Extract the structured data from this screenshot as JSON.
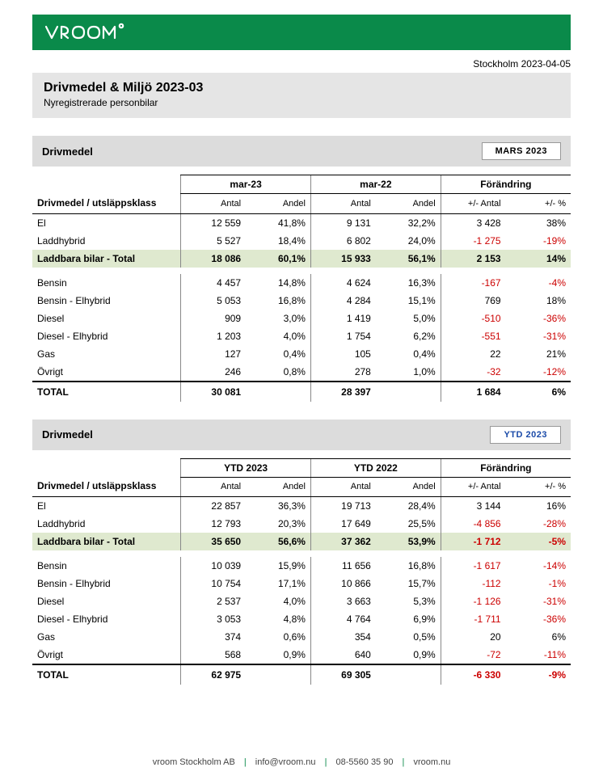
{
  "meta": {
    "location_date": "Stockholm 2023-04-05",
    "title": "Drivmedel & Miljö 2023-03",
    "subtitle": "Nyregistrerade personbilar"
  },
  "colors": {
    "brand_green": "#0a8a4a",
    "section_grey": "#dcdcdc",
    "title_grey": "#e5e5e5",
    "highlight_row": "#dfe9cf",
    "negative": "#cc0000",
    "ytd_blue": "#1a4aa8"
  },
  "section1": {
    "heading": "Drivmedel",
    "period_badge": "MARS 2023",
    "row_header": "Drivmedel / utsläppsklass",
    "group_headers": [
      "mar-23",
      "mar-22",
      "Förändring"
    ],
    "sub_headers": [
      "Antal",
      "Andel",
      "Antal",
      "Andel",
      "+/- Antal",
      "+/- %"
    ],
    "rows": [
      {
        "label": "El",
        "a1": "12 559",
        "s1": "41,8%",
        "a2": "9 131",
        "s2": "32,2%",
        "d": "3 428",
        "p": "38%",
        "neg": false
      },
      {
        "label": "Laddhybrid",
        "a1": "5 527",
        "s1": "18,4%",
        "a2": "6 802",
        "s2": "24,0%",
        "d": "-1 275",
        "p": "-19%",
        "neg": true
      }
    ],
    "subtotal": {
      "label": "Laddbara bilar - Total",
      "a1": "18 086",
      "s1": "60,1%",
      "a2": "15 933",
      "s2": "56,1%",
      "d": "2 153",
      "p": "14%",
      "neg": false
    },
    "rows2": [
      {
        "label": "Bensin",
        "a1": "4 457",
        "s1": "14,8%",
        "a2": "4 624",
        "s2": "16,3%",
        "d": "-167",
        "p": "-4%",
        "neg": true
      },
      {
        "label": "Bensin - Elhybrid",
        "a1": "5 053",
        "s1": "16,8%",
        "a2": "4 284",
        "s2": "15,1%",
        "d": "769",
        "p": "18%",
        "neg": false
      },
      {
        "label": "Diesel",
        "a1": "909",
        "s1": "3,0%",
        "a2": "1 419",
        "s2": "5,0%",
        "d": "-510",
        "p": "-36%",
        "neg": true
      },
      {
        "label": "Diesel - Elhybrid",
        "a1": "1 203",
        "s1": "4,0%",
        "a2": "1 754",
        "s2": "6,2%",
        "d": "-551",
        "p": "-31%",
        "neg": true
      },
      {
        "label": "Gas",
        "a1": "127",
        "s1": "0,4%",
        "a2": "105",
        "s2": "0,4%",
        "d": "22",
        "p": "21%",
        "neg": false
      },
      {
        "label": "Övrigt",
        "a1": "246",
        "s1": "0,8%",
        "a2": "278",
        "s2": "1,0%",
        "d": "-32",
        "p": "-12%",
        "neg": true
      }
    ],
    "total": {
      "label": "TOTAL",
      "a1": "30 081",
      "s1": "",
      "a2": "28 397",
      "s2": "",
      "d": "1 684",
      "p": "6%",
      "neg": false
    }
  },
  "section2": {
    "heading": "Drivmedel",
    "period_badge": "YTD 2023",
    "row_header": "Drivmedel / utsläppsklass",
    "group_headers": [
      "YTD 2023",
      "YTD 2022",
      "Förändring"
    ],
    "sub_headers": [
      "Antal",
      "Andel",
      "Antal",
      "Andel",
      "+/- Antal",
      "+/- %"
    ],
    "rows": [
      {
        "label": "El",
        "a1": "22 857",
        "s1": "36,3%",
        "a2": "19 713",
        "s2": "28,4%",
        "d": "3 144",
        "p": "16%",
        "neg": false
      },
      {
        "label": "Laddhybrid",
        "a1": "12 793",
        "s1": "20,3%",
        "a2": "17 649",
        "s2": "25,5%",
        "d": "-4 856",
        "p": "-28%",
        "neg": true
      }
    ],
    "subtotal": {
      "label": "Laddbara bilar - Total",
      "a1": "35 650",
      "s1": "56,6%",
      "a2": "37 362",
      "s2": "53,9%",
      "d": "-1 712",
      "p": "-5%",
      "neg": true
    },
    "rows2": [
      {
        "label": "Bensin",
        "a1": "10 039",
        "s1": "15,9%",
        "a2": "11 656",
        "s2": "16,8%",
        "d": "-1 617",
        "p": "-14%",
        "neg": true
      },
      {
        "label": "Bensin - Elhybrid",
        "a1": "10 754",
        "s1": "17,1%",
        "a2": "10 866",
        "s2": "15,7%",
        "d": "-112",
        "p": "-1%",
        "neg": true
      },
      {
        "label": "Diesel",
        "a1": "2 537",
        "s1": "4,0%",
        "a2": "3 663",
        "s2": "5,3%",
        "d": "-1 126",
        "p": "-31%",
        "neg": true
      },
      {
        "label": "Diesel - Elhybrid",
        "a1": "3 053",
        "s1": "4,8%",
        "a2": "4 764",
        "s2": "6,9%",
        "d": "-1 711",
        "p": "-36%",
        "neg": true
      },
      {
        "label": "Gas",
        "a1": "374",
        "s1": "0,6%",
        "a2": "354",
        "s2": "0,5%",
        "d": "20",
        "p": "6%",
        "neg": false
      },
      {
        "label": "Övrigt",
        "a1": "568",
        "s1": "0,9%",
        "a2": "640",
        "s2": "0,9%",
        "d": "-72",
        "p": "-11%",
        "neg": true
      }
    ],
    "total": {
      "label": "TOTAL",
      "a1": "62 975",
      "s1": "",
      "a2": "69 305",
      "s2": "",
      "d": "-6 330",
      "p": "-9%",
      "neg": true
    }
  },
  "footer": {
    "company": "vroom Stockholm AB",
    "email": "info@vroom.nu",
    "phone": "08-5560 35 90",
    "web": "vroom.nu"
  }
}
